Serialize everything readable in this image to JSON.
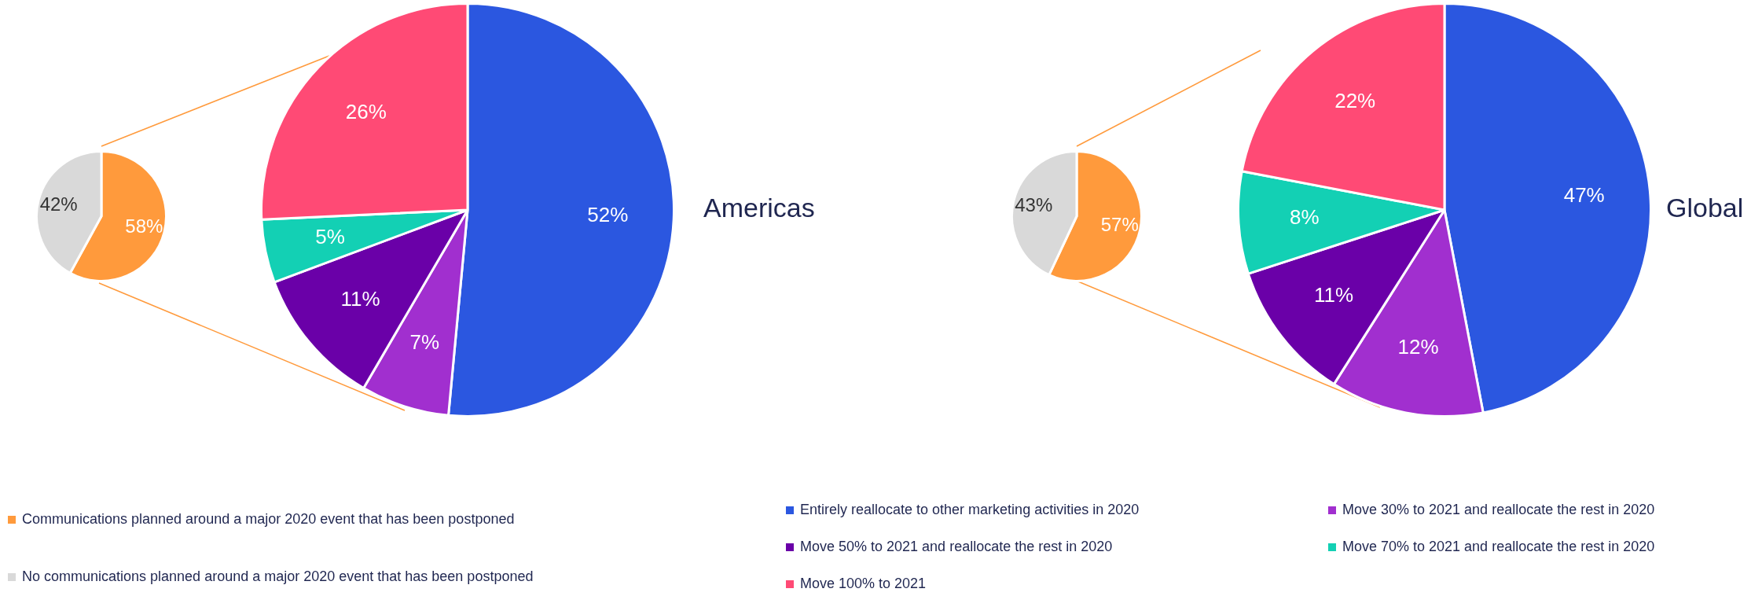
{
  "chart_data": [
    {
      "type": "pie",
      "categories": [
        "Communications planned around a major 2020 event that has been postponed",
        "No communications planned around a major 2020 event that has been postponed"
      ],
      "values": [
        58,
        42
      ],
      "value_labels": [
        "58%",
        "42%"
      ],
      "colors": [
        "#ff9a3c",
        "#d9d9d9"
      ],
      "legend": "bottom right"
    },
    {
      "type": "pie",
      "title": "Americas",
      "categories": [
        "Entirely reallocate to other marketing activities in 2020",
        "Move 30% to 2021 and reallocate the rest in 2020",
        "Move 50% to 2021 and reallocate the rest in 2020",
        "Move 70% to 2021 and reallocate the rest in 2020",
        "Move 100% to 2021"
      ],
      "values": [
        52,
        7,
        11,
        5,
        26
      ],
      "value_labels": [
        "52%",
        "7%",
        "11%",
        "5%",
        "26%"
      ],
      "colors": [
        "#2b57e0",
        "#a12fcf",
        "#6a00a8",
        "#13d0b4",
        "#ff4a75"
      ],
      "legend": "bottom right"
    },
    {
      "type": "pie",
      "categories": [
        null,
        null
      ],
      "values": [
        57,
        43
      ],
      "value_labels": [
        "57%",
        "43%"
      ],
      "colors": [
        "#ff9a3c",
        "#d9d9d9"
      ]
    },
    {
      "type": "pie",
      "title": "Global",
      "categories": [
        null,
        null,
        null,
        null,
        null
      ],
      "values": [
        47,
        12,
        11,
        8,
        22
      ],
      "value_labels": [
        "47%",
        "12%",
        "11%",
        "8%",
        "22%"
      ],
      "colors": [
        "#2b57e0",
        "#a12fcf",
        "#6a00a8",
        "#13d0b4",
        "#ff4a75"
      ]
    }
  ]
}
